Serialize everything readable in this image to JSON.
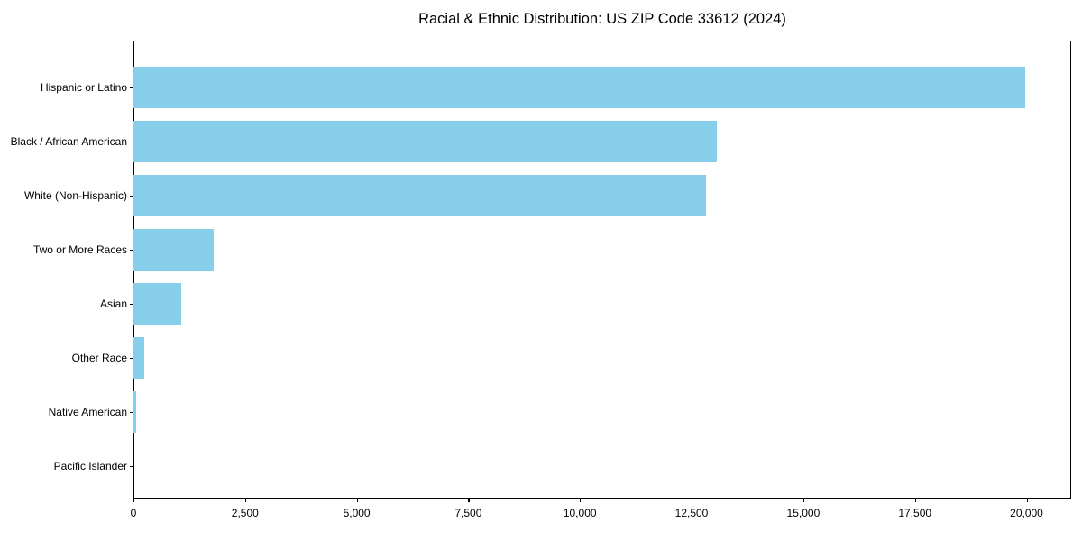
{
  "chart_data": {
    "type": "bar",
    "orientation": "horizontal",
    "title": "Racial & Ethnic Distribution: US ZIP Code 33612 (2024)",
    "xlabel": "",
    "ylabel": "",
    "categories": [
      "Hispanic or Latino",
      "Black / African American",
      "White (Non-Hispanic)",
      "Two or More Races",
      "Asian",
      "Other Race",
      "Native American",
      "Pacific Islander"
    ],
    "values": [
      19970,
      13070,
      12830,
      1800,
      1070,
      250,
      60,
      0
    ],
    "xlim": [
      0,
      21000
    ],
    "xticks": [
      0,
      2500,
      5000,
      7500,
      10000,
      12500,
      15000,
      17500,
      20000
    ],
    "xtick_labels": [
      "0",
      "2,500",
      "5,000",
      "7,500",
      "10,000",
      "12,500",
      "15,000",
      "17,500",
      "20,000"
    ],
    "grid": false,
    "legend": false,
    "bar_color": "#87CEEB",
    "axis_color": "#000000",
    "background_color": "#ffffff"
  }
}
